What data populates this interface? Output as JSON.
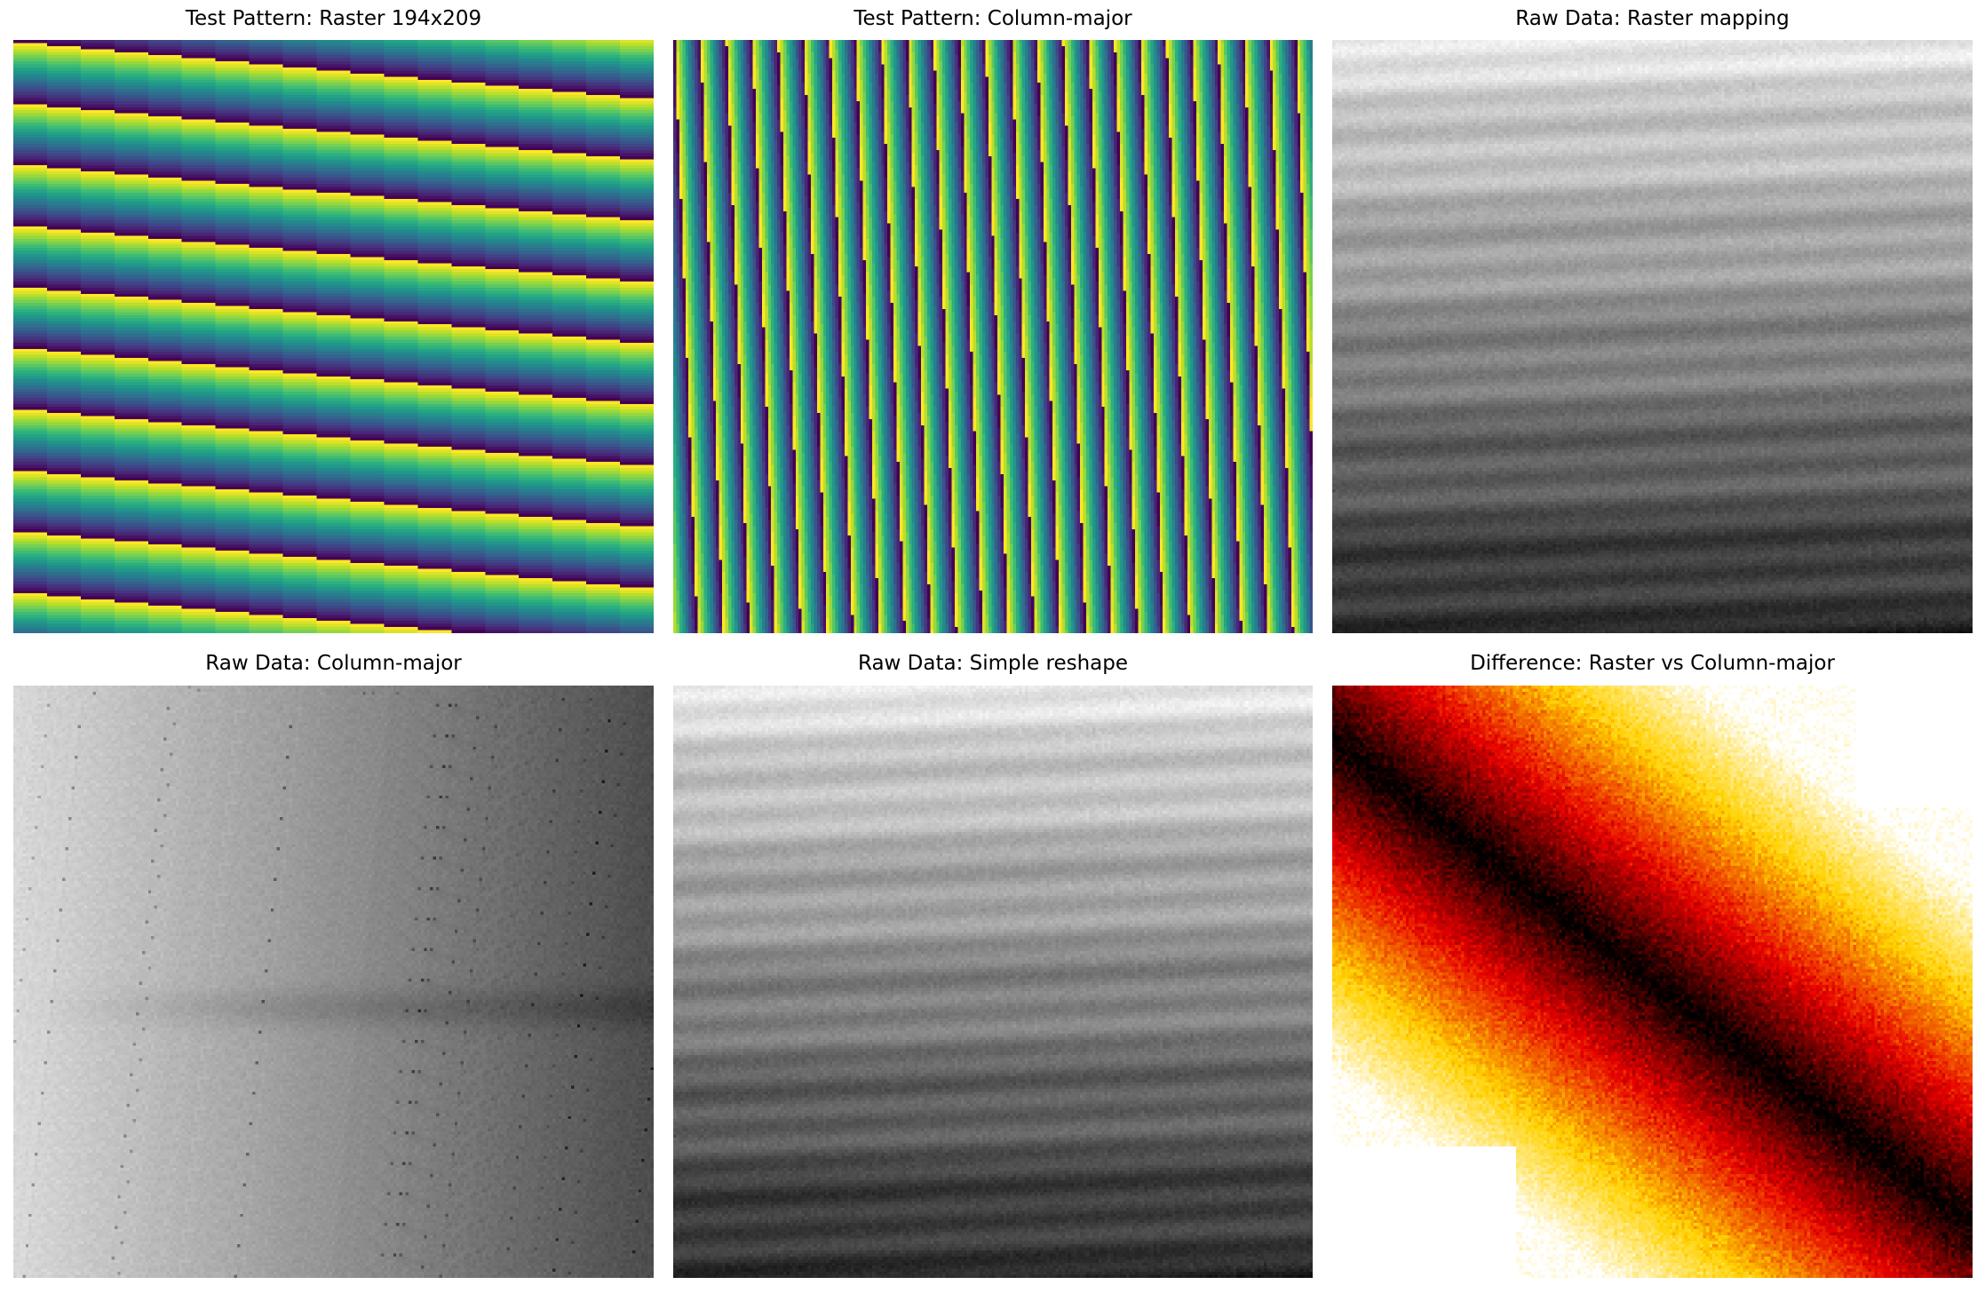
{
  "figure": {
    "title": "",
    "colormaps": {
      "viridis": [
        "#440154",
        "#482878",
        "#3e4989",
        "#31688e",
        "#26828e",
        "#1f9e89",
        "#35b779",
        "#6ece58",
        "#b5de2b",
        "#fde725"
      ],
      "gray": [
        "#000000",
        "#ffffff"
      ],
      "hot": [
        "#000000",
        "#e60000",
        "#ffd200",
        "#ffffff"
      ]
    }
  },
  "chart_data": [
    {
      "type": "heatmap",
      "title": "Test Pattern: Raster 194x209",
      "grid_shape": [
        194,
        209
      ],
      "colormap": "viridis",
      "description": "Test pattern values 0-19 laid out in raster order; gentle diagonal banding (~17 bands)",
      "pattern": "raster",
      "axes": "off"
    },
    {
      "type": "heatmap",
      "title": "Test Pattern: Column-major",
      "colormap": "viridis",
      "description": "Same test pattern laid out in column-major order; steep diagonal stripes (~13 stripes)",
      "pattern": "column-major",
      "axes": "off"
    },
    {
      "type": "heatmap",
      "title": "Raw Data: Raster mapping",
      "colormap": "gray",
      "description": "Raw intensity data mapped in raster order; bright at top fading to dark at bottom with faint slanted streaks",
      "pattern": "raw-raster",
      "axes": "off"
    },
    {
      "type": "heatmap",
      "title": "Raw Data: Column-major",
      "colormap": "gray",
      "description": "Raw intensity data mapped in column-major order; bright on the left, darker on the right, with scattered dark specks and a dark streak near the middle",
      "pattern": "raw-column",
      "axes": "off"
    },
    {
      "type": "heatmap",
      "title": "Raw Data: Simple reshape",
      "colormap": "gray",
      "description": "Raw intensity data with a simple reshape; same appearance as raster mapping",
      "pattern": "raw-raster",
      "axes": "off"
    },
    {
      "type": "heatmap",
      "title": "Difference: Raster vs Column-major",
      "colormap": "hot",
      "description": "Absolute difference between raster and column-major raw mappings; dark diagonal band from top-left toward right, bright yellow at bottom-left and top-right",
      "pattern": "difference",
      "axes": "off"
    }
  ]
}
